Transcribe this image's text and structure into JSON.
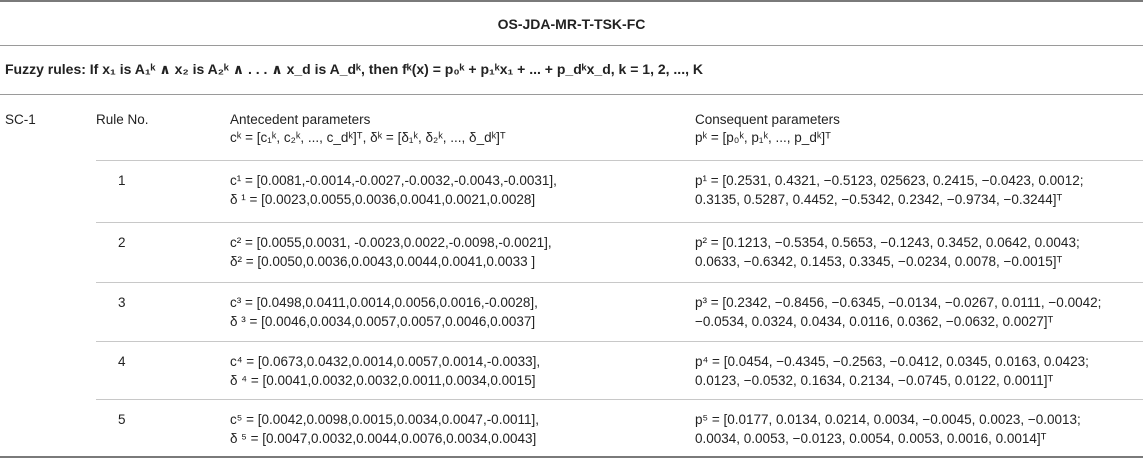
{
  "title": "OS-JDA-MR-T-TSK-FC",
  "fuzzy_rules": "Fuzzy rules: If x₁ is A₁ᵏ ∧ x₂ is A₂ᵏ ∧ . . . ∧ x_d is A_dᵏ, then fᵏ(x) = p₀ᵏ + p₁ᵏx₁ + ... + p_dᵏx_d, k = 1, 2, ..., K",
  "columns": {
    "sc": "SC-1",
    "rule_no": "Rule No.",
    "antecedent": "Antecedent parameters",
    "antecedent_def": "cᵏ = [c₁ᵏ, c₂ᵏ, ..., c_dᵏ]ᵀ, δᵏ = [δ₁ᵏ, δ₂ᵏ, ..., δ_dᵏ]ᵀ",
    "consequent": "Consequent parameters",
    "consequent_def": "pᵏ = [p₀ᵏ, p₁ᵏ, ..., p_dᵏ]ᵀ"
  },
  "rows": [
    {
      "no": "1",
      "c": "c¹ = [0.0081,-0.0014,-0.0027,-0.0032,-0.0043,-0.0031],",
      "d": "δ ¹ = [0.0023,0.0055,0.0036,0.0041,0.0021,0.0028]",
      "p1": "p¹ = [0.2531, 0.4321, −0.5123, 025623, 0.2415, −0.0423, 0.0012;",
      "p2": "0.3135, 0.5287, 0.4452, −0.5342, 0.2342, −0.9734, −0.3244]ᵀ"
    },
    {
      "no": "2",
      "c": "c² = [0.0055,0.0031, -0.0023,0.0022,-0.0098,-0.0021],",
      "d": "δ² = [0.0050,0.0036,0.0043,0.0044,0.0041,0.0033 ]",
      "p1": "p² = [0.1213, −0.5354, 0.5653, −0.1243, 0.3452, 0.0642, 0.0043;",
      "p2": "0.0633, −0.6342, 0.1453, 0.3345, −0.0234, 0.0078, −0.0015]ᵀ"
    },
    {
      "no": "3",
      "c": "c³ = [0.0498,0.0411,0.0014,0.0056,0.0016,-0.0028],",
      "d": "δ ³ = [0.0046,0.0034,0.0057,0.0057,0.0046,0.0037]",
      "p1": "p³ = [0.2342, −0.8456, −0.6345, −0.0134, −0.0267, 0.0111, −0.0042;",
      "p2": "−0.0534, 0.0324, 0.0434, 0.0116, 0.0362, −0.0632, 0.0027]ᵀ"
    },
    {
      "no": "4",
      "c": "c⁴ = [0.0673,0.0432,0.0014,0.0057,0.0014,-0.0033],",
      "d": "δ ⁴ = [0.0041,0.0032,0.0032,0.0011,0.0034,0.0015]",
      "p1": "p⁴ = [0.0454, −0.4345, −0.2563, −0.0412, 0.0345, 0.0163, 0.0423;",
      "p2": "0.0123, −0.0532, 0.1634, 0.2134, −0.0745, 0.0122, 0.0011]ᵀ"
    },
    {
      "no": "5",
      "c": "c⁵ = [0.0042,0.0098,0.0015,0.0034,0.0047,-0.0011],",
      "d": "δ ⁵ = [0.0047,0.0032,0.0044,0.0076,0.0034,0.0043]",
      "p1": "p⁵ = [0.0177, 0.0134, 0.0214, 0.0034, −0.0045, 0.0023, −0.0013;",
      "p2": "0.0034, 0.0053, −0.0123, 0.0054, 0.0053, 0.0016, 0.0014]ᵀ"
    }
  ]
}
